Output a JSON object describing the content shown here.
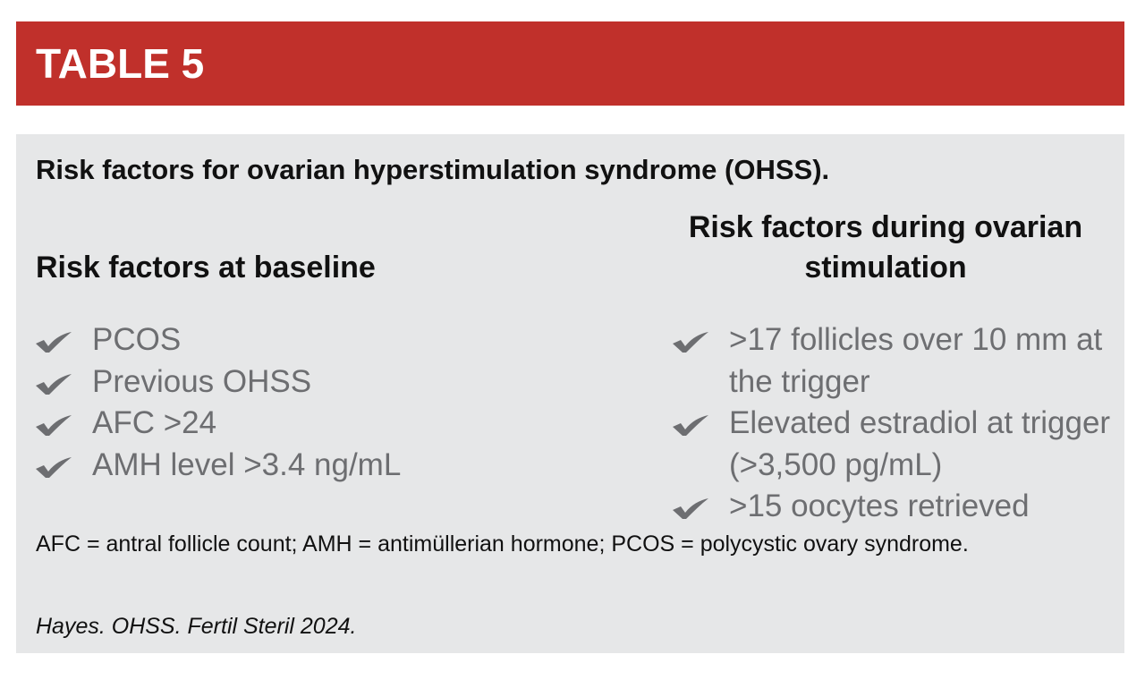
{
  "header": {
    "title": "TABLE 5"
  },
  "table": {
    "caption": "Risk factors for ovarian hyperstimulation syndrome (OHSS).",
    "columns": [
      {
        "heading": "Risk factors at baseline",
        "items": [
          "PCOS",
          "Previous OHSS",
          "AFC >24",
          "AMH level >3.4 ng/mL"
        ]
      },
      {
        "heading": "Risk factors during ovarian stimulation",
        "items": [
          ">17 follicles over 10 mm at the trigger",
          "Elevated estradiol at trigger (>3,500 pg/mL)",
          ">15 oocytes retrieved"
        ]
      }
    ]
  },
  "footnote": "AFC = antral follicle count; AMH = antimüllerian hormone; PCOS = polycystic ovary syndrome.",
  "citation": "Hayes. OHSS. Fertil Steril 2024."
}
